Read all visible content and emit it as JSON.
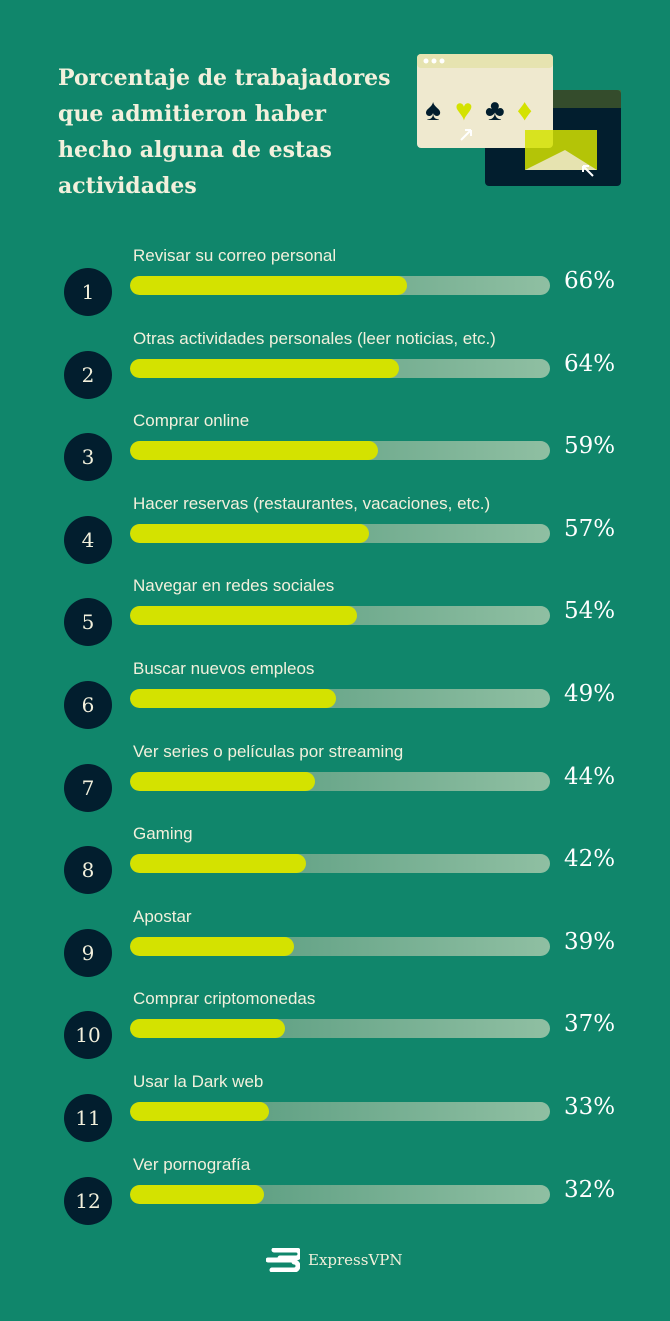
{
  "title": "Porcentaje de trabajadores que admitieron haber hecho alguna de estas actividades",
  "brand": "ExpressVPN",
  "colors": {
    "background": "#10866b",
    "bar_fill": "#d4e200",
    "bar_track": "#8fbfa2",
    "badge": "#021e2e"
  },
  "chart_data": {
    "type": "bar",
    "orientation": "horizontal",
    "title": "Porcentaje de trabajadores que admitieron haber hecho alguna de estas actividades",
    "xlim": [
      0,
      100
    ],
    "ranks": [
      "1",
      "2",
      "3",
      "4",
      "5",
      "6",
      "7",
      "8",
      "9",
      "10",
      "11",
      "12"
    ],
    "categories": [
      "Revisar su correo personal",
      "Otras actividades personales (leer noticias, etc.)",
      "Comprar online",
      "Hacer reservas (restaurantes, vacaciones, etc.)",
      "Navegar en redes sociales",
      "Buscar nuevos empleos",
      "Ver series o películas por streaming",
      "Gaming",
      "Apostar",
      "Comprar criptomonedas",
      "Usar la Dark web",
      "Ver pornografía"
    ],
    "values": [
      66,
      64,
      59,
      57,
      54,
      49,
      44,
      42,
      39,
      37,
      33,
      32
    ],
    "value_labels": [
      "66%",
      "64%",
      "59%",
      "57%",
      "54%",
      "49%",
      "44%",
      "42%",
      "39%",
      "37%",
      "33%",
      "32%"
    ]
  }
}
